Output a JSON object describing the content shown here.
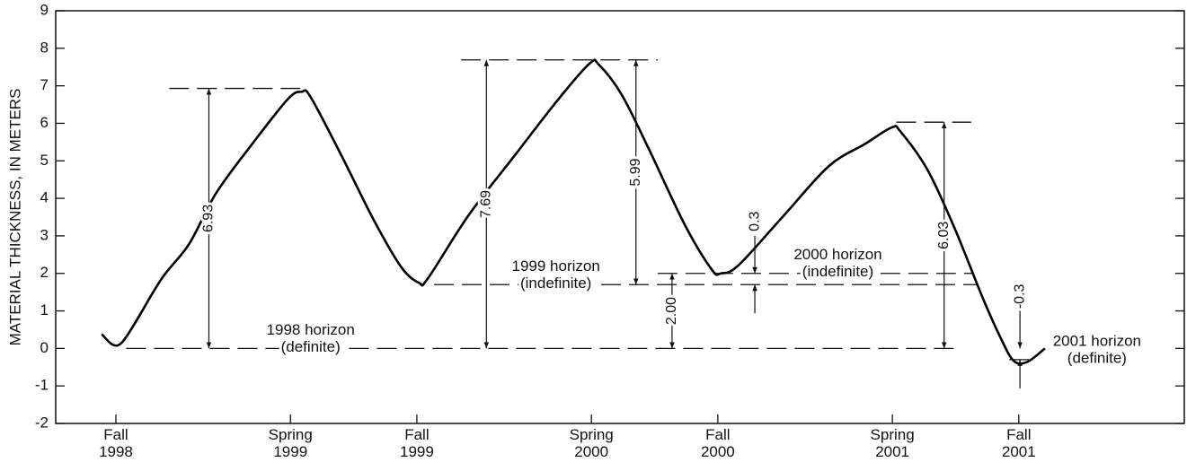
{
  "chart_data": {
    "type": "line",
    "y_label": "MATERIAL THICKNESS, IN METERS",
    "xlim": [
      1998.6,
      2002.35
    ],
    "ylim": [
      -2,
      9
    ],
    "yticks": [
      -2,
      -1,
      0,
      1,
      2,
      3,
      4,
      5,
      6,
      7,
      8,
      9
    ],
    "xticks": [
      {
        "value": 1998.8,
        "label": "Fall 1998"
      },
      {
        "value": 1999.38,
        "label": "Spring 1999"
      },
      {
        "value": 1999.8,
        "label": "Fall 1999"
      },
      {
        "value": 2000.38,
        "label": "Spring 2000"
      },
      {
        "value": 2000.8,
        "label": "Fall 2000"
      },
      {
        "value": 2001.38,
        "label": "Spring 2001"
      },
      {
        "value": 2001.8,
        "label": "Fall 2001"
      }
    ],
    "color": "#000000",
    "x": [
      1998.753,
      1998.789,
      1998.819,
      1998.863,
      1998.953,
      1999.043,
      1999.133,
      1999.253,
      1999.372,
      1999.417,
      1999.447,
      1999.552,
      1999.657,
      1999.747,
      1999.807,
      1999.837,
      1999.971,
      2000.121,
      2000.271,
      2000.375,
      2000.405,
      2000.48,
      2000.57,
      2000.69,
      2000.78,
      2000.81,
      2000.869,
      2001.019,
      2001.169,
      2001.289,
      2001.378,
      2001.408,
      2001.498,
      2001.588,
      2001.678,
      2001.738,
      2001.783,
      2001.828,
      2001.887
    ],
    "values": [
      0.38,
      0.1,
      0.15,
      0.67,
      1.87,
      2.78,
      4.14,
      5.45,
      6.65,
      6.84,
      6.7,
      5.1,
      3.42,
      2.18,
      1.75,
      1.87,
      3.54,
      5.1,
      6.65,
      7.6,
      7.56,
      6.77,
      5.33,
      3.3,
      2.1,
      2.0,
      2.22,
      3.54,
      4.86,
      5.45,
      5.89,
      5.77,
      4.74,
      3.18,
      1.39,
      0.31,
      -0.33,
      -0.36,
      0
    ],
    "horizons": [
      {
        "label": [
          "1998 horizon",
          "(definite)"
        ],
        "y": 0,
        "x": [
          1998.834,
          2001.594
        ],
        "label_x": 1999.447
      },
      {
        "label": [
          "1999 horizon",
          "(indefinite)"
        ],
        "y": 1.7,
        "x": [
          1999.857,
          2001.663
        ],
        "label_x": 2000.262
      },
      {
        "label": [
          "2000 horizon",
          "(indefinite)"
        ],
        "y": 2.0,
        "x": [
          2000.6,
          2001.648
        ],
        "label_x": 2001.199
      },
      {
        "label": [
          "2001 horizon",
          "(definite)"
        ],
        "y": -0.3,
        "x": [
          2001.768,
          2001.858
        ],
        "label_x": 2002.06
      }
    ],
    "measurements": [
      {
        "label": "6.93",
        "value": 6.93,
        "base": 0,
        "x": 1999.109,
        "line_x": [
          1998.977,
          1999.432
        ]
      },
      {
        "label": "7.69",
        "value": 7.69,
        "base": 0,
        "x": 2000.031,
        "line_x": [
          1999.947,
          2000.6
        ]
      },
      {
        "label": "5.99",
        "value": 5.99,
        "base": 1.7,
        "x": 2000.528
      },
      {
        "label": "2.00",
        "value": 2.0,
        "base": 0,
        "x": 2000.648
      },
      {
        "label": "0.3",
        "value": 0.3,
        "base": 1.7,
        "x": 2000.923
      },
      {
        "label": "6.03",
        "value": 6.03,
        "base": 0,
        "x": 2001.552,
        "line_x": [
          2001.393,
          2001.642
        ]
      },
      {
        "label": "-0.3",
        "value": -0.3,
        "base": 0,
        "x": 2001.804
      }
    ]
  }
}
